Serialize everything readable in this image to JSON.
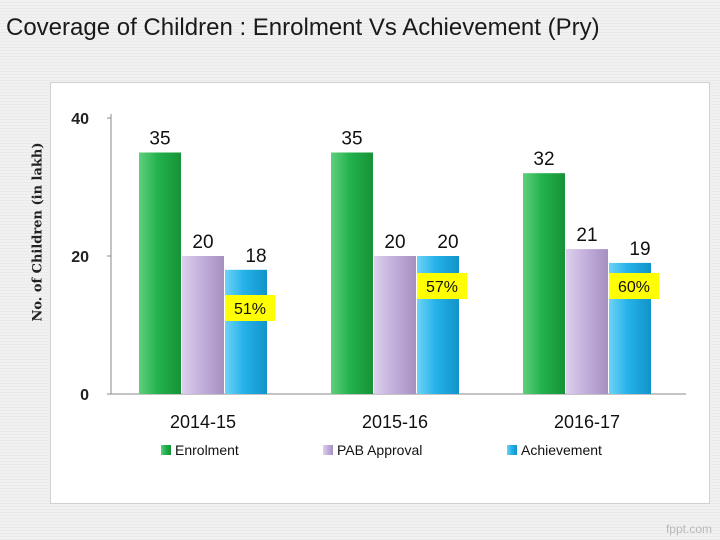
{
  "page": {
    "title": "Coverage of  Children : Enrolment Vs Achievement (Pry)",
    "watermark": "fppt.com"
  },
  "chart_data": {
    "type": "bar",
    "title": "Coverage of  Children : Enrolment Vs Achievement (Pry)",
    "ylabel": "No. of Children (in lakh)",
    "xlabel": "",
    "categories": [
      "2014-15",
      "2015-16",
      "2016-17"
    ],
    "series": [
      {
        "name": "Enrolment",
        "values": [
          35,
          35,
          32
        ],
        "labels": [
          "35",
          "35",
          "32"
        ],
        "color": "#22b24c"
      },
      {
        "name": "PAB Approval",
        "values": [
          20,
          20,
          21
        ],
        "labels": [
          "20",
          "20",
          "21"
        ],
        "color": "#c4b0dc"
      },
      {
        "name": "Achievement",
        "values": [
          18,
          20,
          19
        ],
        "labels": [
          "18",
          "20",
          "19"
        ],
        "color": "#25b2ea"
      }
    ],
    "annotations": [
      "51%",
      "57%",
      "60%"
    ],
    "yticks": [
      0,
      20,
      40
    ],
    "ylim": [
      0,
      40
    ],
    "grid": false,
    "legend_position": "bottom"
  }
}
